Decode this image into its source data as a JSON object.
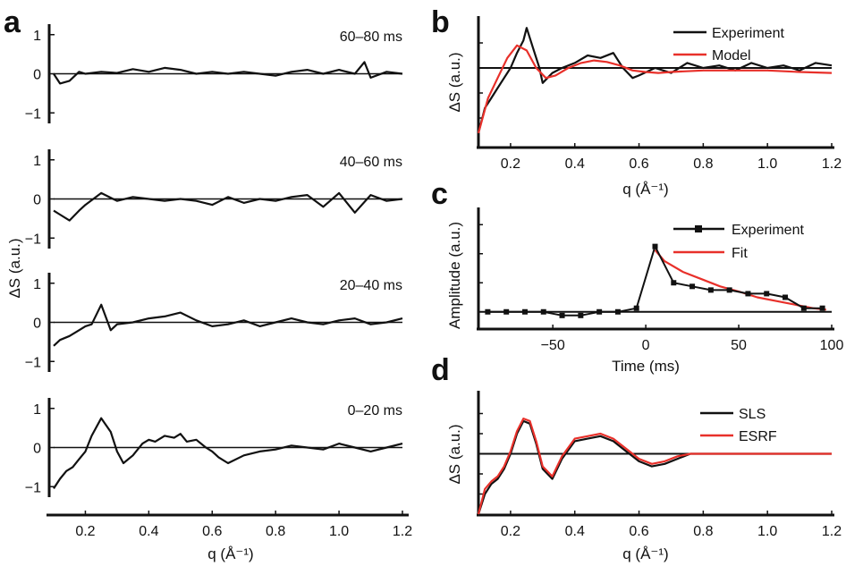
{
  "panel_labels": [
    "a",
    "b",
    "c",
    "d"
  ],
  "chart_data": [
    {
      "panel": "a",
      "type": "line",
      "xlabel": "q (Å⁻¹)",
      "ylabel": "ΔS (a.u.)",
      "xlim": [
        0.1,
        1.2
      ],
      "ylim": [
        -1.2,
        1.2
      ],
      "x_ticks": [
        "0.2",
        "0.4",
        "0.6",
        "0.8",
        "1.0",
        "1.2"
      ],
      "y_ticks": [
        "1",
        "0",
        "−1"
      ],
      "series_color": "#111111",
      "subplots": [
        {
          "label": "60–80 ms",
          "x": [
            0.1,
            0.12,
            0.15,
            0.18,
            0.2,
            0.25,
            0.3,
            0.35,
            0.4,
            0.45,
            0.5,
            0.55,
            0.6,
            0.65,
            0.7,
            0.75,
            0.8,
            0.85,
            0.9,
            0.95,
            1.0,
            1.05,
            1.08,
            1.1,
            1.15,
            1.2
          ],
          "y": [
            0.0,
            -0.25,
            -0.18,
            0.05,
            0.0,
            0.05,
            0.02,
            0.12,
            0.05,
            0.15,
            0.1,
            0.0,
            0.05,
            0.0,
            0.05,
            0.0,
            -0.05,
            0.05,
            0.1,
            0.0,
            0.1,
            0.0,
            0.3,
            -0.1,
            0.05,
            0.0
          ]
        },
        {
          "label": "40–60 ms",
          "x": [
            0.1,
            0.12,
            0.15,
            0.18,
            0.2,
            0.25,
            0.3,
            0.35,
            0.4,
            0.45,
            0.5,
            0.55,
            0.6,
            0.65,
            0.7,
            0.75,
            0.8,
            0.85,
            0.9,
            0.95,
            1.0,
            1.05,
            1.1,
            1.15,
            1.2
          ],
          "y": [
            -0.3,
            -0.4,
            -0.55,
            -0.3,
            -0.15,
            0.15,
            -0.05,
            0.05,
            0.0,
            -0.05,
            0.0,
            -0.05,
            -0.15,
            0.05,
            -0.1,
            0.0,
            -0.05,
            0.05,
            0.1,
            -0.2,
            0.15,
            -0.35,
            0.1,
            -0.05,
            0.0
          ]
        },
        {
          "label": "20–40 ms",
          "x": [
            0.1,
            0.12,
            0.15,
            0.18,
            0.2,
            0.22,
            0.25,
            0.28,
            0.3,
            0.35,
            0.4,
            0.45,
            0.5,
            0.55,
            0.6,
            0.65,
            0.7,
            0.75,
            0.8,
            0.85,
            0.9,
            0.95,
            1.0,
            1.05,
            1.1,
            1.15,
            1.2
          ],
          "y": [
            -0.6,
            -0.45,
            -0.35,
            -0.2,
            -0.1,
            -0.05,
            0.45,
            -0.2,
            -0.05,
            0.0,
            0.1,
            0.15,
            0.25,
            0.05,
            -0.1,
            -0.05,
            0.05,
            -0.1,
            0.0,
            0.1,
            0.0,
            -0.05,
            0.05,
            0.1,
            -0.05,
            0.0,
            0.1
          ]
        },
        {
          "label": "0–20 ms",
          "x": [
            0.1,
            0.12,
            0.14,
            0.16,
            0.18,
            0.2,
            0.22,
            0.25,
            0.28,
            0.3,
            0.32,
            0.35,
            0.38,
            0.4,
            0.42,
            0.45,
            0.48,
            0.5,
            0.52,
            0.55,
            0.58,
            0.6,
            0.62,
            0.65,
            0.7,
            0.75,
            0.8,
            0.85,
            0.9,
            0.95,
            1.0,
            1.05,
            1.1,
            1.15,
            1.2
          ],
          "y": [
            -1.05,
            -0.8,
            -0.6,
            -0.5,
            -0.3,
            -0.1,
            0.3,
            0.75,
            0.4,
            -0.1,
            -0.4,
            -0.2,
            0.1,
            0.2,
            0.15,
            0.3,
            0.25,
            0.35,
            0.15,
            0.2,
            0.0,
            -0.1,
            -0.25,
            -0.4,
            -0.2,
            -0.1,
            -0.05,
            0.05,
            0.0,
            -0.05,
            0.1,
            0.0,
            -0.1,
            0.0,
            0.1
          ]
        }
      ]
    },
    {
      "panel": "b",
      "type": "line",
      "xlabel": "q (Å⁻¹)",
      "ylabel": "ΔS (a.u.)",
      "xlim": [
        0.1,
        1.2
      ],
      "ylim": [
        -1.5,
        1.0
      ],
      "x_ticks": [
        "0.2",
        "0.4",
        "0.6",
        "0.8",
        "1.0",
        "1.2"
      ],
      "legend": "top-right",
      "series": [
        {
          "name": "Experiment",
          "color": "#111111",
          "x": [
            0.1,
            0.12,
            0.14,
            0.16,
            0.18,
            0.2,
            0.22,
            0.24,
            0.25,
            0.27,
            0.29,
            0.3,
            0.33,
            0.36,
            0.4,
            0.44,
            0.48,
            0.52,
            0.55,
            0.58,
            0.6,
            0.65,
            0.7,
            0.75,
            0.8,
            0.85,
            0.9,
            0.95,
            1.0,
            1.05,
            1.1,
            1.15,
            1.2
          ],
          "y": [
            -1.3,
            -0.8,
            -0.6,
            -0.4,
            -0.2,
            0.0,
            0.3,
            0.55,
            0.8,
            0.4,
            0.0,
            -0.3,
            -0.1,
            0.0,
            0.1,
            0.25,
            0.2,
            0.3,
            0.0,
            -0.2,
            -0.15,
            0.0,
            -0.1,
            0.1,
            0.0,
            0.05,
            -0.05,
            0.1,
            0.0,
            0.05,
            -0.05,
            0.1,
            0.05
          ]
        },
        {
          "name": "Model",
          "color": "#e8302a",
          "x": [
            0.1,
            0.13,
            0.16,
            0.19,
            0.22,
            0.25,
            0.28,
            0.31,
            0.34,
            0.38,
            0.42,
            0.46,
            0.5,
            0.54,
            0.58,
            0.62,
            0.66,
            0.7,
            0.8,
            0.9,
            1.0,
            1.1,
            1.2
          ],
          "y": [
            -1.3,
            -0.6,
            -0.2,
            0.2,
            0.45,
            0.35,
            0.0,
            -0.2,
            -0.15,
            0.0,
            0.1,
            0.15,
            0.12,
            0.05,
            -0.05,
            -0.08,
            -0.1,
            -0.08,
            -0.05,
            -0.05,
            -0.05,
            -0.08,
            -0.1
          ]
        }
      ]
    },
    {
      "panel": "c",
      "type": "line",
      "xlabel": "Time (ms)",
      "ylabel": "Amplitude (a.u.)",
      "xlim": [
        -90,
        100
      ],
      "ylim": [
        -0.2,
        1.4
      ],
      "x_ticks": [
        "−50",
        "0",
        "50",
        "100"
      ],
      "legend": "top-right",
      "series": [
        {
          "name": "Experiment",
          "color": "#111111",
          "marker": "square",
          "x": [
            -85,
            -75,
            -65,
            -55,
            -45,
            -35,
            -25,
            -15,
            -5,
            5,
            15,
            25,
            35,
            45,
            55,
            65,
            75,
            85,
            95
          ],
          "y": [
            0.0,
            0.0,
            0.0,
            0.0,
            -0.05,
            -0.05,
            0.0,
            0.0,
            0.05,
            0.9,
            0.4,
            0.35,
            0.3,
            0.3,
            0.25,
            0.25,
            0.2,
            0.05,
            0.05
          ]
        },
        {
          "name": "Fit",
          "color": "#e8302a",
          "x": [
            5,
            10,
            20,
            30,
            40,
            50,
            60,
            70,
            80,
            90,
            97
          ],
          "y": [
            0.85,
            0.7,
            0.55,
            0.45,
            0.35,
            0.28,
            0.2,
            0.15,
            0.1,
            0.05,
            0.03
          ]
        }
      ]
    },
    {
      "panel": "d",
      "type": "line",
      "xlabel": "q (Å⁻¹)",
      "ylabel": "ΔS (a.u.)",
      "xlim": [
        0.1,
        1.2
      ],
      "ylim": [
        -1.2,
        1.2
      ],
      "x_ticks": [
        "0.2",
        "0.4",
        "0.6",
        "0.8",
        "1.0",
        "1.2"
      ],
      "legend": "top-right",
      "series": [
        {
          "name": "SLS",
          "color": "#111111",
          "x": [
            0.1,
            0.12,
            0.14,
            0.16,
            0.18,
            0.2,
            0.22,
            0.24,
            0.26,
            0.28,
            0.3,
            0.33,
            0.36,
            0.4,
            0.44,
            0.48,
            0.52,
            0.56,
            0.6,
            0.64,
            0.68,
            0.72,
            0.76,
            0.8,
            0.9,
            1.0,
            1.1,
            1.2
          ],
          "y": [
            -1.2,
            -0.8,
            -0.6,
            -0.5,
            -0.3,
            0.0,
            0.4,
            0.65,
            0.6,
            0.2,
            -0.3,
            -0.5,
            -0.1,
            0.25,
            0.3,
            0.35,
            0.25,
            0.05,
            -0.15,
            -0.25,
            -0.2,
            -0.1,
            0.0,
            0.0,
            0.0,
            0.0,
            0.0,
            0.0
          ]
        },
        {
          "name": "ESRF",
          "color": "#e8302a",
          "x": [
            0.1,
            0.12,
            0.14,
            0.16,
            0.18,
            0.2,
            0.22,
            0.24,
            0.26,
            0.28,
            0.3,
            0.33,
            0.36,
            0.4,
            0.44,
            0.48,
            0.52,
            0.56,
            0.6,
            0.64,
            0.68,
            0.72,
            0.76,
            0.8,
            0.9,
            1.0,
            1.1,
            1.2
          ],
          "y": [
            -1.2,
            -0.7,
            -0.55,
            -0.45,
            -0.25,
            0.05,
            0.45,
            0.7,
            0.65,
            0.25,
            -0.25,
            -0.45,
            -0.05,
            0.3,
            0.35,
            0.4,
            0.3,
            0.1,
            -0.1,
            -0.2,
            -0.15,
            -0.05,
            0.0,
            0.0,
            0.0,
            0.0,
            0.0,
            0.0
          ]
        }
      ]
    }
  ]
}
